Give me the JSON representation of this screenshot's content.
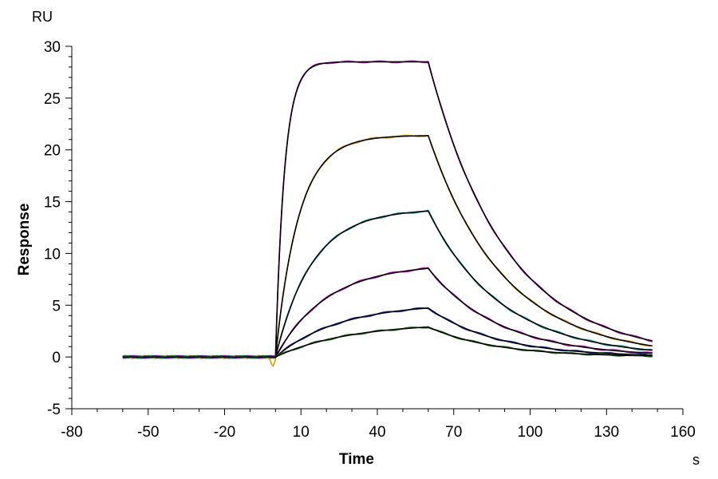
{
  "chart_data": {
    "type": "line",
    "title": "",
    "xlabel": "Time",
    "ylabel": "Response",
    "x_unit": "s",
    "y_unit": "RU",
    "xlim": [
      -80,
      160
    ],
    "ylim": [
      -5,
      30
    ],
    "x_ticks": [
      -80,
      -50,
      -20,
      10,
      40,
      70,
      100,
      130,
      160
    ],
    "y_ticks": [
      -5,
      0,
      5,
      10,
      15,
      20,
      25,
      30
    ],
    "x_minor_step": 10,
    "y_minor_step": 1,
    "grid": false,
    "legend": "none",
    "fit_model": {
      "association_start": 0,
      "dissociation_start": 60,
      "end": 148,
      "baseline_start": -60
    },
    "series": [
      {
        "plateau": 28.5,
        "k_on": 0.28,
        "k_off": 0.033,
        "rise_end": 28.5,
        "color": "#c000c0",
        "fit_color": "#000000"
      },
      {
        "plateau": 21.4,
        "k_on": 0.11,
        "k_off": 0.034,
        "rise_end": 21.3,
        "color": "#d4a000",
        "fit_color": "#000000"
      },
      {
        "plateau": 14.3,
        "k_on": 0.07,
        "k_off": 0.035,
        "rise_end": 14.2,
        "color": "#00a0a0",
        "fit_color": "#000000"
      },
      {
        "plateau": 9.0,
        "k_on": 0.05,
        "k_off": 0.036,
        "rise_end": 8.7,
        "color": "#c000c0",
        "fit_color": "#000000"
      },
      {
        "plateau": 5.2,
        "k_on": 0.04,
        "k_off": 0.037,
        "rise_end": 4.6,
        "color": "#2030c0",
        "fit_color": "#000000"
      },
      {
        "plateau": 3.3,
        "k_on": 0.035,
        "k_off": 0.038,
        "rise_end": 2.7,
        "color": "#208020",
        "fit_color": "#000000"
      }
    ]
  }
}
